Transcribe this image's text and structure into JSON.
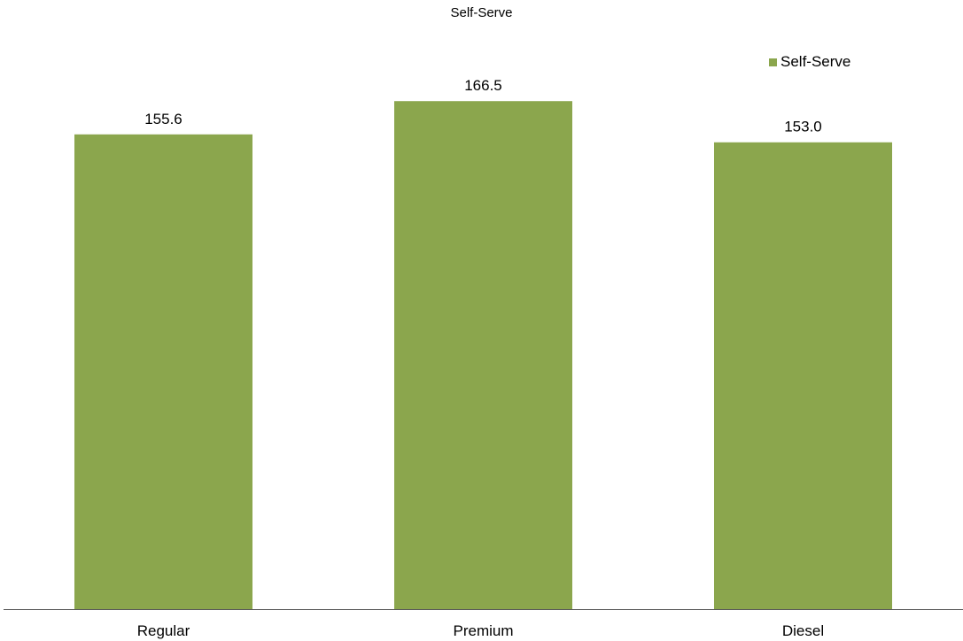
{
  "chart_data": {
    "type": "bar",
    "title": "Self-Serve",
    "categories": [
      "Regular",
      "Premium",
      "Diesel"
    ],
    "series": [
      {
        "name": "Self-Serve",
        "values": [
          155.6,
          166.5,
          153.0
        ],
        "value_labels": [
          "155.6",
          "166.5",
          "153.0"
        ],
        "color": "#8BA64D"
      }
    ],
    "xlabel": "",
    "ylabel": "",
    "ylim": [
      0,
      195
    ],
    "grid": false,
    "legend_position": "top-right",
    "colors": {
      "bar": "#8BA64D",
      "axis": "#595959"
    }
  }
}
